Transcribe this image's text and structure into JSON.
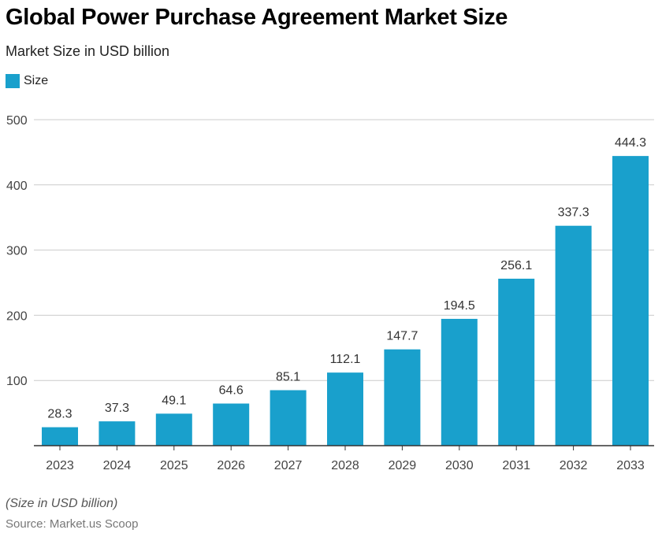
{
  "title": "Global Power Purchase Agreement Market Size",
  "subtitle": "Market Size in USD billion",
  "note": "(Size in USD billion)",
  "source": "Source: Market.us Scoop",
  "chart_data": {
    "type": "bar",
    "title": "Global Power Purchase Agreement Market Size",
    "subtitle": "Market Size in USD billion",
    "xlabel": "",
    "ylabel": "",
    "categories": [
      "2023",
      "2024",
      "2025",
      "2026",
      "2027",
      "2028",
      "2029",
      "2030",
      "2031",
      "2032",
      "2033"
    ],
    "series": [
      {
        "name": "Size",
        "values": [
          28.3,
          37.3,
          49.1,
          64.6,
          85.1,
          112.1,
          147.7,
          194.5,
          256.1,
          337.3,
          444.3
        ],
        "color": "#19a0cc"
      }
    ],
    "ylim": [
      0,
      500
    ],
    "yticks": [
      100,
      200,
      300,
      400,
      500
    ],
    "grid": true,
    "legend": "top-left"
  }
}
